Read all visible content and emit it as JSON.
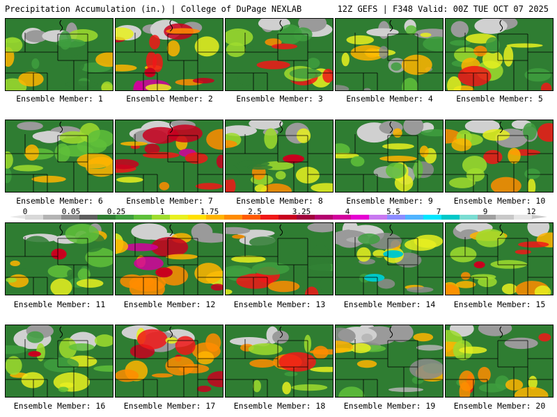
{
  "header": {
    "title": "Precipitation Accumulation (in.) | College of DuPage NEXLAB",
    "run_info": "12Z GEFS | F348 Valid: 00Z TUE OCT 07 2025"
  },
  "colorbar": {
    "ticks": [
      "0",
      "0.05",
      "0.25",
      "1",
      "1.75",
      "2.5",
      "3.25",
      "4",
      "5.5",
      "7",
      "9",
      "12"
    ],
    "colors": [
      "#d8d8d8",
      "#b4b4b4",
      "#8c8c8c",
      "#5e5e5e",
      "#2f7d32",
      "#3e9d3e",
      "#5fbf3a",
      "#9fdc2e",
      "#e8f020",
      "#ffe000",
      "#ffb400",
      "#ff8c00",
      "#ff5a00",
      "#f01818",
      "#c8001e",
      "#a0003c",
      "#b4006e",
      "#d2009c",
      "#e600d2",
      "#c878f0",
      "#8c8cff",
      "#50b4ff",
      "#00e6ff",
      "#00c8c8",
      "#7adcd2",
      "#a0a0a0",
      "#c8c8c8",
      "#e6e6e6"
    ]
  },
  "members": [
    {
      "label": "Ensemble Member: 1"
    },
    {
      "label": "Ensemble Member: 2"
    },
    {
      "label": "Ensemble Member: 3"
    },
    {
      "label": "Ensemble Member: 4"
    },
    {
      "label": "Ensemble Member: 5"
    },
    {
      "label": "Ensemble Member: 6"
    },
    {
      "label": "Ensemble Member: 7"
    },
    {
      "label": "Ensemble Member: 8"
    },
    {
      "label": "Ensemble Member: 9"
    },
    {
      "label": "Ensemble Member: 10"
    },
    {
      "label": "Ensemble Member: 11"
    },
    {
      "label": "Ensemble Member: 12"
    },
    {
      "label": "Ensemble Member: 13"
    },
    {
      "label": "Ensemble Member: 14"
    },
    {
      "label": "Ensemble Member: 15"
    },
    {
      "label": "Ensemble Member: 16"
    },
    {
      "label": "Ensemble Member: 17"
    },
    {
      "label": "Ensemble Member: 18"
    },
    {
      "label": "Ensemble Member: 19"
    },
    {
      "label": "Ensemble Member: 20"
    }
  ]
}
